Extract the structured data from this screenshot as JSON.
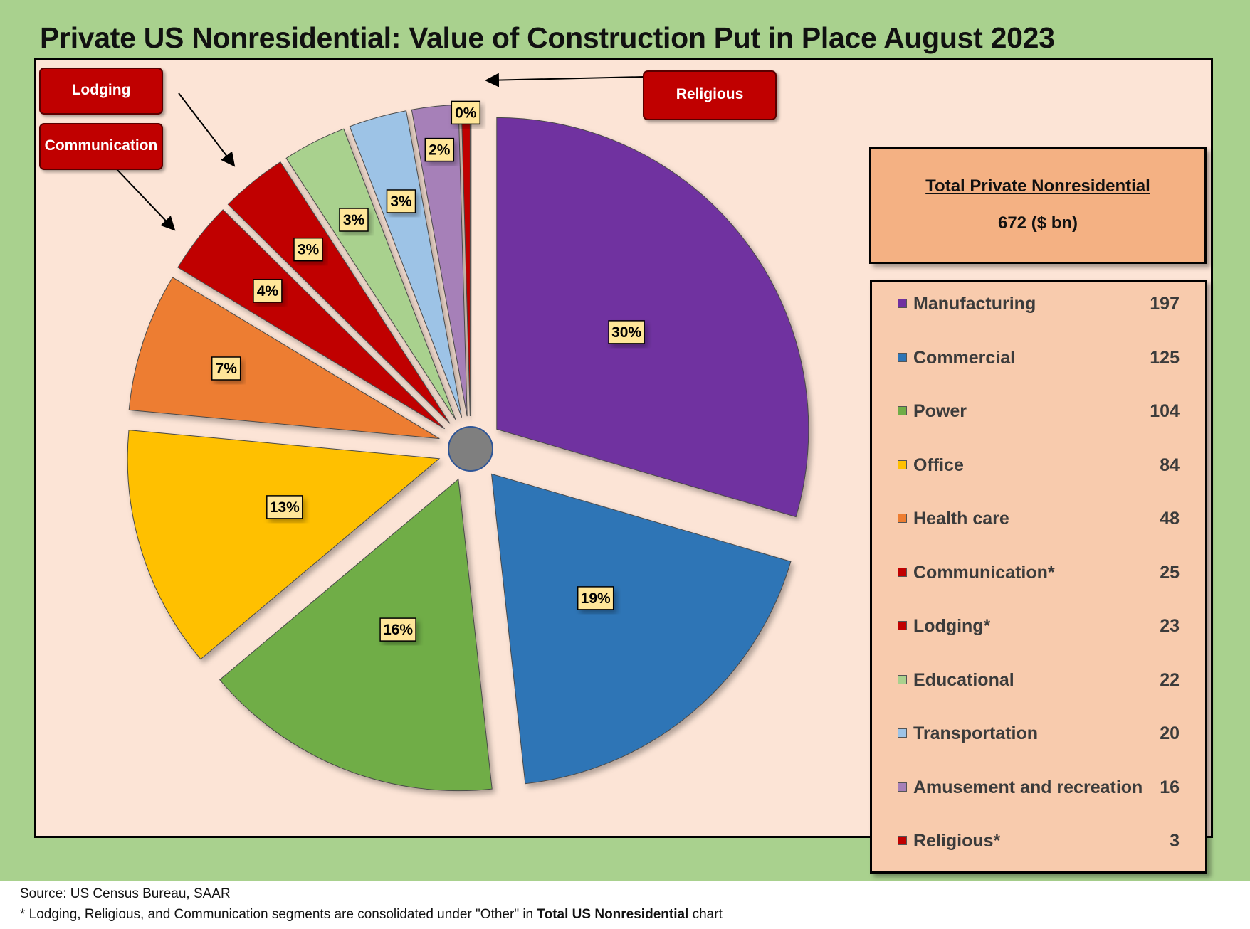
{
  "chart_data": {
    "type": "pie",
    "title": "Private US Nonresidential: Value of Construction Put in Place August 2023",
    "total_label": "Total Private Nonresidential",
    "total_value": "672 ($ bn)",
    "slices": [
      {
        "name": "Manufacturing",
        "value": 197,
        "label": "30%",
        "color": "#7030a0"
      },
      {
        "name": "Commercial",
        "value": 125,
        "label": "19%",
        "color": "#2e75b6"
      },
      {
        "name": "Power",
        "value": 104,
        "label": "16%",
        "color": "#70ad47"
      },
      {
        "name": "Office",
        "value": 84,
        "label": "13%",
        "color": "#ffc000"
      },
      {
        "name": "Health care",
        "value": 48,
        "label": "7%",
        "color": "#ed7d31"
      },
      {
        "name": "Communication*",
        "value": 25,
        "label": "4%",
        "color": "#c00000"
      },
      {
        "name": "Lodging*",
        "value": 23,
        "label": "3%",
        "color": "#c00000"
      },
      {
        "name": "Educational",
        "value": 22,
        "label": "3%",
        "color": "#a9d18e"
      },
      {
        "name": "Transportation",
        "value": 20,
        "label": "3%",
        "color": "#9dc3e6"
      },
      {
        "name": "Amusement and recreation",
        "value": 16,
        "label": "2%",
        "color": "#a680b8"
      },
      {
        "name": "Religious*",
        "value": 3,
        "label": "0%",
        "color": "#c00000"
      }
    ],
    "callouts": [
      "Lodging",
      "Communication",
      "Religious"
    ]
  },
  "footer": {
    "source": "Source: US Census Bureau, SAAR",
    "note_prefix": "* Lodging, Religious, and Communication segments are consolidated under \"Other\" in ",
    "note_bold": "Total US Nonresidential",
    "note_suffix": " chart"
  },
  "colors": {
    "background": "#a9d18e",
    "plot_area": "#fce4d6",
    "total_box": "#f4b183",
    "legend_box": "#f8cbad",
    "label_box": "#ffe699",
    "center_dot": "#7f7f7f"
  }
}
